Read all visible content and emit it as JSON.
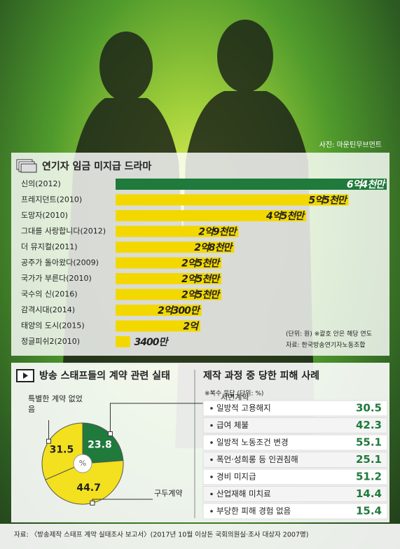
{
  "photo_credit": "사진: 마운틴무브먼트",
  "source": "자료: 〈방송제작 스태프 계약 실태조사 보고서〉(2017년 10월 이상돈 국회의원실·조사 대상자 2007명)",
  "chart_data": [
    {
      "type": "bar",
      "orientation": "horizontal",
      "title": "연기자 임금 미지급 드라마",
      "categories": [
        "신의(2012)",
        "프레지던트(2010)",
        "도망자(2010)",
        "그대를 사랑합니다(2012)",
        "더 뮤지컬(2011)",
        "공주가 돌아왔다(2009)",
        "국가가 부른다(2010)",
        "국수의 신(2016)",
        "감격시대(2014)",
        "태양의 도시(2015)",
        "정글피쉬2(2010)"
      ],
      "values": [
        640000000,
        550000000,
        450000000,
        290000000,
        280000000,
        250000000,
        250000000,
        250000000,
        203000000,
        200000000,
        34000000
      ],
      "value_labels": [
        "6억4천만",
        "5억5천만",
        "4억5천만",
        "2억9천만",
        "2억8천만",
        "2억5천만",
        "2억5천만",
        "2억5천만",
        "2억300만",
        "2억",
        "3400만"
      ],
      "colors": [
        "#1f7a3c",
        "#f3d800",
        "#f3d800",
        "#f3d800",
        "#f3d800",
        "#f3d800",
        "#f3d800",
        "#f3d800",
        "#f3d800",
        "#f3d800",
        "#f3d800"
      ],
      "xlim": [
        0,
        640000000
      ],
      "notes": [
        "(단위: 원) ※괄호 안은 해당 연도",
        "자료: 한국방송연기자노동조합"
      ]
    },
    {
      "type": "pie",
      "title": "방송 스태프들의 계약 관련 실태",
      "center_label": "%",
      "categories": [
        "서면계약",
        "구두계약",
        "특별한 계약 없었음"
      ],
      "values": [
        23.8,
        44.7,
        31.5
      ],
      "colors": [
        "#1f7a3c",
        "#f3e01e",
        "#f3e01e"
      ]
    },
    {
      "type": "table",
      "title": "제작 과정 중 당한 피해 사례",
      "note": "※복수 응답 (단위: %)",
      "categories": [
        "일방적 고용해지",
        "급여 체불",
        "일방적 노동조건 변경",
        "폭언·성희롱 등 인권침해",
        "경비 미지급",
        "산업재해 미치료",
        "부당한 피해 경험 없음"
      ],
      "values": [
        30.5,
        42.3,
        55.1,
        25.1,
        51.2,
        14.4,
        15.4
      ],
      "color": "#1f7a3c"
    }
  ]
}
